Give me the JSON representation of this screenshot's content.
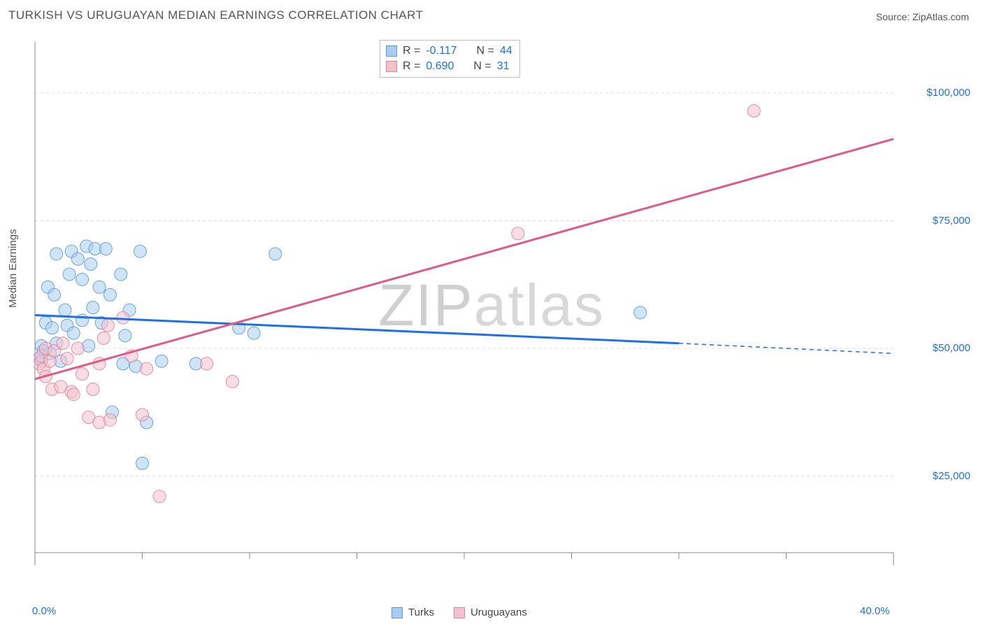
{
  "title": "TURKISH VS URUGUAYAN MEDIAN EARNINGS CORRELATION CHART",
  "source_prefix": "Source: ",
  "source_name": "ZipAtlas.com",
  "watermark": "ZIPatlas",
  "ylabel": "Median Earnings",
  "chart": {
    "type": "scatter",
    "background_color": "#ffffff",
    "grid_color": "#dcdcdc",
    "axis_color": "#888888",
    "xlim": [
      0,
      40
    ],
    "ylim": [
      10000,
      110000
    ],
    "xticks_major": [
      0,
      40
    ],
    "xticks_minor": [
      5,
      10,
      15,
      20,
      25,
      30,
      35
    ],
    "xtick_labels": {
      "0": "0.0%",
      "40": "40.0%"
    },
    "yticks": [
      25000,
      50000,
      75000,
      100000
    ],
    "ytick_labels": {
      "25000": "$25,000",
      "50000": "$50,000",
      "75000": "$75,000",
      "100000": "$100,000"
    },
    "marker_radius": 9,
    "marker_opacity": 0.55,
    "marker_stroke_opacity": 0.9,
    "line_width": 3,
    "series": [
      {
        "name": "Turks",
        "color_fill": "#a9cdf1",
        "color_stroke": "#5b9bd5",
        "line_color": "#1f6fe5",
        "R": "-0.117",
        "N": "44",
        "regression": {
          "x1": 0,
          "y1": 56500,
          "x2": 30,
          "y2": 51000,
          "x_extend": 40,
          "y_extend": 49000
        },
        "points": [
          [
            0.2,
            48000
          ],
          [
            0.3,
            50500
          ],
          [
            0.4,
            49500
          ],
          [
            0.3,
            47500
          ],
          [
            0.5,
            55000
          ],
          [
            0.6,
            62000
          ],
          [
            0.7,
            49000
          ],
          [
            0.8,
            54000
          ],
          [
            0.9,
            60500
          ],
          [
            1.0,
            51000
          ],
          [
            1.0,
            68500
          ],
          [
            1.2,
            47500
          ],
          [
            1.4,
            57500
          ],
          [
            1.5,
            54500
          ],
          [
            1.6,
            64500
          ],
          [
            1.7,
            69000
          ],
          [
            1.8,
            53000
          ],
          [
            2.0,
            67500
          ],
          [
            2.2,
            63500
          ],
          [
            2.2,
            55500
          ],
          [
            2.4,
            70000
          ],
          [
            2.5,
            50500
          ],
          [
            2.6,
            66500
          ],
          [
            2.7,
            58000
          ],
          [
            2.8,
            69500
          ],
          [
            3.0,
            62000
          ],
          [
            3.1,
            55000
          ],
          [
            3.3,
            69500
          ],
          [
            3.5,
            60500
          ],
          [
            3.6,
            37500
          ],
          [
            4.0,
            64500
          ],
          [
            4.1,
            47000
          ],
          [
            4.2,
            52500
          ],
          [
            4.4,
            57500
          ],
          [
            4.7,
            46500
          ],
          [
            4.9,
            69000
          ],
          [
            5.0,
            27500
          ],
          [
            5.2,
            35500
          ],
          [
            5.9,
            47500
          ],
          [
            7.5,
            47000
          ],
          [
            9.5,
            54000
          ],
          [
            10.2,
            53000
          ],
          [
            11.2,
            68500
          ],
          [
            28.2,
            57000
          ]
        ]
      },
      {
        "name": "Uruguayans",
        "color_fill": "#f3c3cd",
        "color_stroke": "#e57f99",
        "line_color": "#e05a85",
        "R": "0.690",
        "N": "31",
        "regression": {
          "x1": 0,
          "y1": 44000,
          "x2": 40,
          "y2": 91000
        },
        "points": [
          [
            0.2,
            47000
          ],
          [
            0.3,
            48500
          ],
          [
            0.4,
            46000
          ],
          [
            0.5,
            50000
          ],
          [
            0.5,
            44500
          ],
          [
            0.7,
            47500
          ],
          [
            0.8,
            42000
          ],
          [
            0.9,
            49500
          ],
          [
            1.2,
            42500
          ],
          [
            1.3,
            51000
          ],
          [
            1.5,
            48000
          ],
          [
            1.7,
            41500
          ],
          [
            1.8,
            41000
          ],
          [
            2.0,
            50000
          ],
          [
            2.2,
            45000
          ],
          [
            2.5,
            36500
          ],
          [
            2.7,
            42000
          ],
          [
            3.0,
            47000
          ],
          [
            3.0,
            35500
          ],
          [
            3.2,
            52000
          ],
          [
            3.4,
            54500
          ],
          [
            3.5,
            36000
          ],
          [
            4.1,
            56000
          ],
          [
            4.5,
            48500
          ],
          [
            5.0,
            37000
          ],
          [
            5.2,
            46000
          ],
          [
            5.8,
            21000
          ],
          [
            8.0,
            47000
          ],
          [
            9.2,
            43500
          ],
          [
            22.5,
            72500
          ],
          [
            33.5,
            96500
          ]
        ]
      }
    ]
  },
  "stat_legend_labels": {
    "R_prefix": "R  =  ",
    "N_prefix": "N  =  "
  },
  "series_legend": [
    "Turks",
    "Uruguayans"
  ]
}
